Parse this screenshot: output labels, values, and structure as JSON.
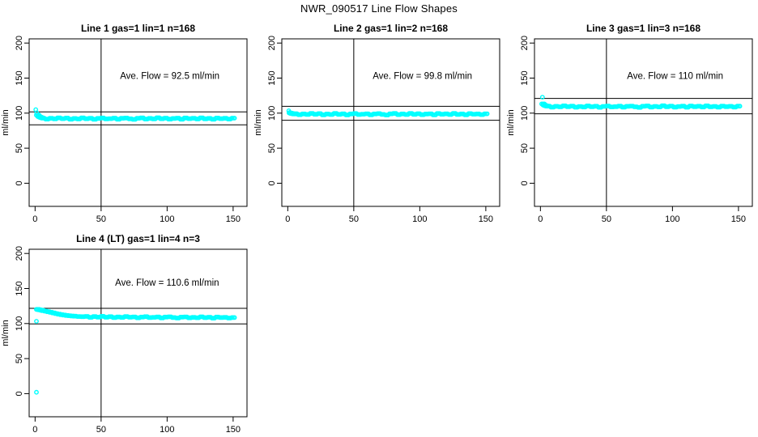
{
  "figure": {
    "title": "NWR_090517  Line Flow Shapes",
    "background_color": "#ffffff",
    "point_color": "#00ffff",
    "line_color": "#000000"
  },
  "chart_data": [
    {
      "type": "scatter",
      "title": "Line 1 gas=1 lin=1 n=168",
      "xlabel": "",
      "ylabel": "ml/min",
      "xlim": [
        -4.5,
        160.5
      ],
      "ylim": [
        -33,
        206
      ],
      "xticks": [
        0,
        50,
        100,
        150
      ],
      "yticks": [
        0,
        50,
        100,
        150,
        200
      ],
      "grid": false,
      "annotation": "Ave. Flow =  92.5  ml/min",
      "annotation_xy": [
        102,
        149
      ],
      "ave_flow": 92.5,
      "ref_h": [
        101.8,
        83.3
      ],
      "ref_v": 50,
      "points": [
        [
          0.5,
          105.0,
          1
        ],
        [
          1.2,
          100.5,
          1
        ],
        [
          2,
          97.2
        ],
        [
          3,
          95.3
        ],
        [
          4,
          94.2
        ],
        [
          5,
          93.4
        ],
        [
          6,
          92.9
        ],
        [
          9,
          91.5
        ],
        [
          12,
          92.6
        ],
        [
          15,
          91.9
        ],
        [
          18,
          93.3
        ],
        [
          21,
          92.1
        ],
        [
          24,
          93.0
        ],
        [
          27,
          91.3
        ],
        [
          30,
          92.4
        ],
        [
          33,
          91.7
        ],
        [
          36,
          93.2
        ],
        [
          39,
          92.0
        ],
        [
          42,
          92.7
        ],
        [
          45,
          91.2
        ],
        [
          48,
          92.5
        ],
        [
          51,
          93.1
        ],
        [
          54,
          91.8
        ],
        [
          57,
          92.2
        ],
        [
          60,
          92.8
        ],
        [
          63,
          91.4
        ],
        [
          66,
          92.6
        ],
        [
          69,
          93.0
        ],
        [
          72,
          91.9
        ],
        [
          75,
          91.1
        ],
        [
          78,
          92.7
        ],
        [
          81,
          93.2
        ],
        [
          84,
          91.6
        ],
        [
          87,
          92.5
        ],
        [
          90,
          91.8
        ],
        [
          93,
          93.4
        ],
        [
          96,
          92.0
        ],
        [
          99,
          92.9
        ],
        [
          102,
          91.5
        ],
        [
          105,
          92.4
        ],
        [
          108,
          92.8
        ],
        [
          111,
          91.3
        ],
        [
          114,
          93.1
        ],
        [
          117,
          92.1
        ],
        [
          120,
          92.7
        ],
        [
          123,
          91.7
        ],
        [
          126,
          93.3
        ],
        [
          129,
          91.9
        ],
        [
          132,
          92.5
        ],
        [
          135,
          91.4
        ],
        [
          138,
          93.0
        ],
        [
          141,
          92.2
        ],
        [
          144,
          92.6
        ],
        [
          147,
          91.6
        ],
        [
          150,
          92.8
        ]
      ]
    },
    {
      "type": "scatter",
      "title": "Line 2 gas=1 lin=2 n=168",
      "xlabel": "",
      "ylabel": "ml/min",
      "xlim": [
        -4.5,
        160.5
      ],
      "ylim": [
        -33,
        206
      ],
      "xticks": [
        0,
        50,
        100,
        150
      ],
      "yticks": [
        0,
        50,
        100,
        150,
        200
      ],
      "grid": false,
      "annotation": "Ave. Flow =  99.8  ml/min",
      "annotation_xy": [
        102,
        149
      ],
      "ave_flow": 99.8,
      "ref_h": [
        109.8,
        89.8
      ],
      "ref_v": 50,
      "points": [
        [
          0.8,
          103.4,
          1
        ],
        [
          1.5,
          101.0,
          1
        ],
        [
          2,
          100.2
        ],
        [
          3,
          99.5
        ],
        [
          4,
          99.1
        ],
        [
          5,
          98.9
        ],
        [
          6,
          99.2
        ],
        [
          9,
          97.8
        ],
        [
          12,
          98.9
        ],
        [
          15,
          98.2
        ],
        [
          18,
          99.6
        ],
        [
          21,
          98.4
        ],
        [
          24,
          99.3
        ],
        [
          27,
          97.6
        ],
        [
          30,
          98.7
        ],
        [
          33,
          98.0
        ],
        [
          36,
          99.5
        ],
        [
          39,
          98.3
        ],
        [
          42,
          99.0
        ],
        [
          45,
          97.5
        ],
        [
          48,
          98.8
        ],
        [
          51,
          99.4
        ],
        [
          54,
          98.1
        ],
        [
          57,
          98.5
        ],
        [
          60,
          99.1
        ],
        [
          63,
          97.7
        ],
        [
          66,
          98.9
        ],
        [
          69,
          99.3
        ],
        [
          72,
          98.2
        ],
        [
          75,
          97.4
        ],
        [
          78,
          99.0
        ],
        [
          81,
          99.5
        ],
        [
          84,
          97.9
        ],
        [
          87,
          98.8
        ],
        [
          90,
          98.1
        ],
        [
          93,
          99.7
        ],
        [
          96,
          98.3
        ],
        [
          99,
          99.2
        ],
        [
          102,
          97.8
        ],
        [
          105,
          98.7
        ],
        [
          108,
          99.1
        ],
        [
          111,
          97.6
        ],
        [
          114,
          99.4
        ],
        [
          117,
          98.4
        ],
        [
          120,
          99.0
        ],
        [
          123,
          98.0
        ],
        [
          126,
          99.6
        ],
        [
          129,
          98.2
        ],
        [
          132,
          98.8
        ],
        [
          135,
          97.7
        ],
        [
          138,
          99.3
        ],
        [
          141,
          98.5
        ],
        [
          144,
          98.9
        ],
        [
          147,
          97.9
        ],
        [
          150,
          99.1
        ]
      ]
    },
    {
      "type": "scatter",
      "title": "Line 3 gas=1 lin=3 n=168",
      "xlabel": "",
      "ylabel": "ml/min",
      "xlim": [
        -4.5,
        160.5
      ],
      "ylim": [
        -33,
        206
      ],
      "xticks": [
        0,
        50,
        100,
        150
      ],
      "yticks": [
        0,
        50,
        100,
        150,
        200
      ],
      "grid": false,
      "annotation": "Ave. Flow =  110  ml/min",
      "annotation_xy": [
        102,
        149
      ],
      "ave_flow": 110,
      "ref_h": [
        121.0,
        99.0
      ],
      "ref_v": 50,
      "points": [
        [
          1.5,
          122.8,
          1
        ],
        [
          2,
          113.2
        ],
        [
          3,
          111.5
        ],
        [
          4,
          110.6
        ],
        [
          5,
          110.1
        ],
        [
          6,
          110.0
        ],
        [
          9,
          108.6
        ],
        [
          12,
          109.7
        ],
        [
          15,
          109.0
        ],
        [
          18,
          110.4
        ],
        [
          21,
          109.2
        ],
        [
          24,
          110.1
        ],
        [
          27,
          108.4
        ],
        [
          30,
          109.5
        ],
        [
          33,
          108.8
        ],
        [
          36,
          110.3
        ],
        [
          39,
          109.1
        ],
        [
          42,
          109.8
        ],
        [
          45,
          108.3
        ],
        [
          48,
          109.6
        ],
        [
          51,
          110.2
        ],
        [
          54,
          108.9
        ],
        [
          57,
          109.3
        ],
        [
          60,
          109.9
        ],
        [
          63,
          108.5
        ],
        [
          66,
          109.7
        ],
        [
          69,
          110.1
        ],
        [
          72,
          109.0
        ],
        [
          75,
          108.2
        ],
        [
          78,
          109.8
        ],
        [
          81,
          110.3
        ],
        [
          84,
          108.7
        ],
        [
          87,
          109.6
        ],
        [
          90,
          108.9
        ],
        [
          93,
          110.5
        ],
        [
          96,
          109.1
        ],
        [
          99,
          110.0
        ],
        [
          102,
          108.6
        ],
        [
          105,
          109.5
        ],
        [
          108,
          109.9
        ],
        [
          111,
          108.4
        ],
        [
          114,
          110.2
        ],
        [
          117,
          109.2
        ],
        [
          120,
          109.8
        ],
        [
          123,
          108.8
        ],
        [
          126,
          110.4
        ],
        [
          129,
          109.0
        ],
        [
          132,
          109.6
        ],
        [
          135,
          108.5
        ],
        [
          138,
          110.1
        ],
        [
          141,
          109.3
        ],
        [
          144,
          109.7
        ],
        [
          147,
          108.7
        ],
        [
          150,
          109.9
        ]
      ]
    },
    {
      "type": "scatter",
      "title": "Line 4 (LT) gas=1 lin=4 n=3",
      "xlabel": "",
      "ylabel": "ml/min",
      "xlim": [
        -4.5,
        160.5
      ],
      "ylim": [
        -33,
        206
      ],
      "xticks": [
        0,
        50,
        100,
        150
      ],
      "yticks": [
        0,
        50,
        100,
        150,
        200
      ],
      "grid": false,
      "annotation": "Ave. Flow =  110.6  ml/min",
      "annotation_xy": [
        100,
        154
      ],
      "ave_flow": 110.6,
      "ref_h": [
        121.7,
        99.5
      ],
      "ref_v": 50,
      "points": [
        [
          1,
          103.2,
          1
        ],
        [
          1,
          2.0,
          1
        ],
        [
          2,
          120.2
        ],
        [
          3,
          119.8
        ],
        [
          4,
          119.4
        ],
        [
          5,
          119.0
        ],
        [
          6,
          118.5
        ],
        [
          8,
          117.7
        ],
        [
          10,
          116.9
        ],
        [
          12,
          116.0
        ],
        [
          14,
          115.1
        ],
        [
          16,
          114.2
        ],
        [
          18,
          113.4
        ],
        [
          20,
          112.7
        ],
        [
          22,
          112.1
        ],
        [
          24,
          111.6
        ],
        [
          26,
          111.2
        ],
        [
          28,
          110.8
        ],
        [
          30,
          110.5
        ],
        [
          33,
          110.1
        ],
        [
          36,
          109.8
        ],
        [
          39,
          110.2
        ],
        [
          42,
          108.9
        ],
        [
          45,
          109.9
        ],
        [
          48,
          109.1
        ],
        [
          51,
          110.3
        ],
        [
          54,
          109.0
        ],
        [
          57,
          109.8
        ],
        [
          60,
          108.5
        ],
        [
          63,
          109.4
        ],
        [
          66,
          108.8
        ],
        [
          69,
          110.0
        ],
        [
          72,
          109.0
        ],
        [
          75,
          109.5
        ],
        [
          78,
          108.2
        ],
        [
          81,
          109.3
        ],
        [
          84,
          109.8
        ],
        [
          87,
          108.6
        ],
        [
          90,
          108.9
        ],
        [
          93,
          109.4
        ],
        [
          96,
          108.1
        ],
        [
          99,
          109.2
        ],
        [
          102,
          109.6
        ],
        [
          105,
          108.5
        ],
        [
          108,
          107.9
        ],
        [
          111,
          109.1
        ],
        [
          114,
          109.5
        ],
        [
          117,
          108.2
        ],
        [
          120,
          108.8
        ],
        [
          123,
          108.3
        ],
        [
          126,
          109.6
        ],
        [
          129,
          108.4
        ],
        [
          132,
          109.0
        ],
        [
          135,
          107.8
        ],
        [
          138,
          109.2
        ],
        [
          141,
          108.5
        ],
        [
          144,
          108.8
        ],
        [
          147,
          107.9
        ],
        [
          150,
          108.6
        ]
      ]
    }
  ]
}
